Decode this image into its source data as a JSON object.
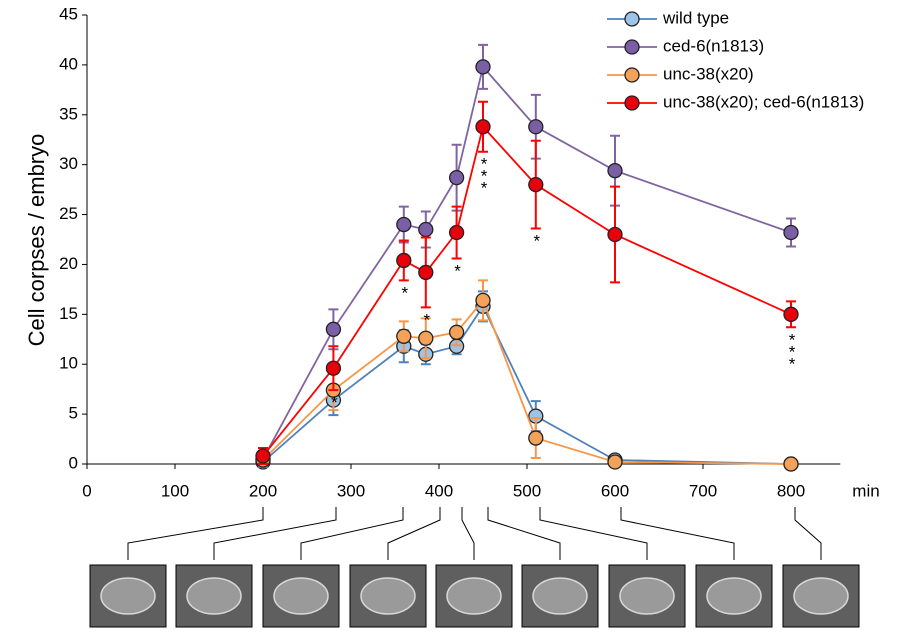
{
  "chart_data": {
    "type": "line",
    "x_label": "min",
    "y_label": "Cell corpses / embryo",
    "x": [
      200,
      280,
      360,
      385,
      420,
      450,
      510,
      600,
      800
    ],
    "xlim": [
      0,
      856
    ],
    "xticks": [
      0,
      100,
      200,
      300,
      400,
      500,
      600,
      700,
      800
    ],
    "ylim": [
      0,
      45
    ],
    "yticks": [
      0,
      5,
      10,
      15,
      20,
      25,
      30,
      35,
      40,
      45
    ],
    "grid": false,
    "legend": "upper right",
    "series": [
      {
        "name": "wild type",
        "color": "#4f81bd",
        "marker_color": "#9dc3e6",
        "values": [
          0.2,
          6.4,
          11.8,
          11.0,
          11.8,
          15.8,
          4.8,
          0.4,
          0.0
        ],
        "errors": [
          0.3,
          1.5,
          1.6,
          1.0,
          0.8,
          1.5,
          1.5,
          0.3,
          0.0
        ]
      },
      {
        "name": "ced-6(n1813)",
        "color": "#8064a2",
        "marker_color": "#7b5fa6",
        "values": [
          0.5,
          13.5,
          24.0,
          23.5,
          28.7,
          39.8,
          33.8,
          29.4,
          23.2
        ],
        "errors": [
          0.8,
          2.0,
          1.8,
          1.8,
          3.3,
          2.2,
          3.2,
          3.5,
          1.4
        ]
      },
      {
        "name": "unc-38(x20)",
        "color": "#f79646",
        "marker_color": "#f4a259",
        "values": [
          0.4,
          7.4,
          12.8,
          12.6,
          13.2,
          16.4,
          2.6,
          0.2,
          0.0
        ],
        "errors": [
          0.5,
          2.0,
          1.5,
          2.0,
          1.3,
          2.0,
          2.0,
          0.3,
          0.0
        ]
      },
      {
        "name": "unc-38(x20); ced-6(n1813)",
        "color": "#ff0000",
        "marker_color": "#e8000b",
        "values": [
          0.8,
          9.6,
          20.4,
          19.2,
          23.2,
          33.8,
          28.0,
          23.0,
          15.0
        ],
        "errors": [
          0.8,
          2.2,
          2.0,
          3.5,
          2.6,
          2.5,
          4.4,
          4.8,
          1.3
        ]
      }
    ],
    "annotations": [
      null,
      "*",
      "*",
      "*",
      "*",
      "***",
      "*",
      null,
      "***"
    ]
  }
}
